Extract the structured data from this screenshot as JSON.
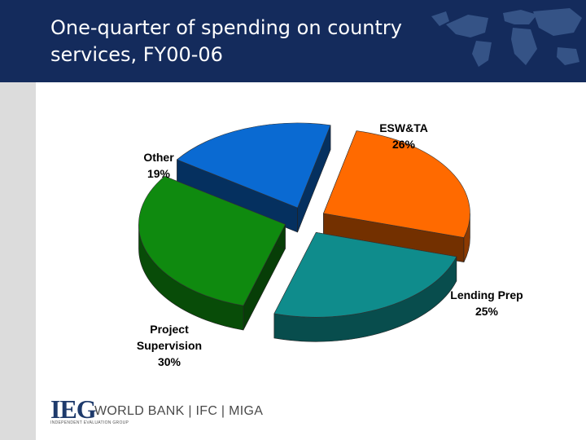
{
  "header": {
    "title_line1": "One-quarter of spending on country",
    "title_line2": "services, FY00-06",
    "background_color": "#142b5c"
  },
  "chart_data": {
    "type": "pie",
    "style": "3d-exploded",
    "title": "",
    "slices": [
      {
        "label": "ESW&TA",
        "value": 26,
        "value_label": "26%",
        "color": "#ff6a00"
      },
      {
        "label": "Lending Prep",
        "value": 25,
        "value_label": "25%",
        "color": "#0f8c8c"
      },
      {
        "label": "Project Supervision",
        "label_lines": [
          "Project",
          "Supervision"
        ],
        "value": 30,
        "value_label": "30%",
        "color": "#0f8a0f"
      },
      {
        "label": "Other",
        "value": 19,
        "value_label": "19%",
        "color": "#0a6ad2"
      }
    ]
  },
  "footer": {
    "logo_text": "IEG",
    "logo_subtitle": "INDEPENDENT EVALUATION GROUP",
    "orgs": "WORLD BANK  |  IFC  |  MIGA"
  }
}
